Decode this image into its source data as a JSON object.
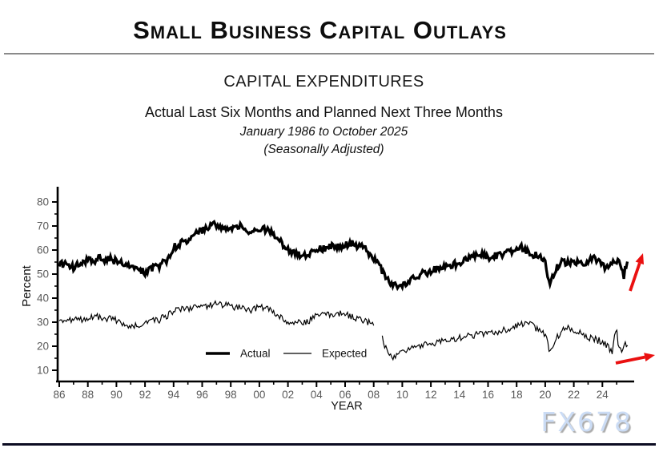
{
  "page": {
    "title": "Small Business Capital Outlays",
    "watermark": "FX678"
  },
  "header": {
    "chart_title": "CAPITAL EXPENDITURES",
    "subtitle": "Actual Last Six Months and Planned Next Three Months",
    "date_range": "January 1986 to October 2025",
    "adjustment_note": "(Seasonally Adjusted)"
  },
  "colors": {
    "line": "#000000",
    "axis": "#000000",
    "tick_label": "#595959",
    "axis_label": "#111111",
    "arrow": "#ea1010",
    "rule": "#8a8a8a",
    "watermark": "#cbdcf5",
    "bottom_bar": "#0c0c22"
  },
  "chart_data": {
    "type": "line",
    "title": "CAPITAL EXPENDITURES",
    "xlabel": "YEAR",
    "ylabel": "Percent",
    "x_range": [
      1986,
      2025.83
    ],
    "ylim": [
      10,
      80
    ],
    "grid": false,
    "legend_position": "inside-bottom-left",
    "y_ticks": [
      10,
      20,
      30,
      40,
      50,
      60,
      70,
      80
    ],
    "y_minor_ticks": [
      15,
      25,
      35,
      45,
      55,
      65,
      75
    ],
    "x_ticks": [
      [
        "86",
        1986
      ],
      [
        "88",
        1988
      ],
      [
        "90",
        1990
      ],
      [
        "92",
        1992
      ],
      [
        "94",
        1994
      ],
      [
        "96",
        1996
      ],
      [
        "98",
        1998
      ],
      [
        "00",
        2000
      ],
      [
        "02",
        2002
      ],
      [
        "04",
        2004
      ],
      [
        "06",
        2006
      ],
      [
        "08",
        2008
      ],
      [
        "10",
        2010
      ],
      [
        "12",
        2012
      ],
      [
        "14",
        2014
      ],
      [
        "16",
        2016
      ],
      [
        "18",
        2018
      ],
      [
        "20",
        2020
      ],
      [
        "22",
        2022
      ],
      [
        "24",
        2024
      ]
    ],
    "x_minor_tick_years": [
      1987,
      1989,
      1991,
      1993,
      1995,
      1997,
      1999,
      2001,
      2003,
      2005,
      2007,
      2009,
      2011,
      2013,
      2015,
      2017,
      2019,
      2021,
      2023,
      2025
    ],
    "legend": [
      {
        "label": "Actual",
        "line": "thick",
        "stroke_width": 3.6
      },
      {
        "label": "Expected",
        "line": "thin",
        "stroke_width": 1.3
      }
    ],
    "series": [
      {
        "name": "Actual",
        "stroke_width": 3.3,
        "noise_amplitude": 1.6,
        "seed": 7,
        "segments": [
          [
            [
              1986,
              54
            ],
            [
              1986.5,
              54.5
            ],
            [
              1987,
              53
            ],
            [
              1988,
              55.5
            ],
            [
              1989,
              56.5
            ],
            [
              1990,
              55.5
            ],
            [
              1991,
              52.5
            ],
            [
              1992,
              50.8
            ],
            [
              1992.6,
              52.5
            ],
            [
              1993,
              53.5
            ],
            [
              1993.5,
              55.5
            ],
            [
              1994,
              61
            ],
            [
              1995,
              64.5
            ],
            [
              1996,
              68
            ],
            [
              1996.8,
              71
            ],
            [
              1997.3,
              69.5
            ],
            [
              1998,
              69.5
            ],
            [
              1998.6,
              70.5
            ],
            [
              1999,
              68.5
            ],
            [
              1999.6,
              68
            ],
            [
              2000,
              69.5
            ],
            [
              2000.6,
              68.5
            ],
            [
              2001,
              66
            ],
            [
              2001.5,
              63
            ],
            [
              2002,
              60.5
            ],
            [
              2002.5,
              59
            ],
            [
              2003,
              57
            ],
            [
              2003.6,
              58.5
            ],
            [
              2004,
              60
            ],
            [
              2005,
              61.5
            ],
            [
              2006,
              62
            ],
            [
              2006.6,
              62.5
            ],
            [
              2007,
              61.5
            ],
            [
              2007.5,
              60
            ],
            [
              2008,
              57
            ],
            [
              2008.5,
              52.5
            ],
            [
              2009,
              47
            ],
            [
              2009.4,
              45.5
            ],
            [
              2010,
              45.5
            ],
            [
              2010.6,
              47
            ],
            [
              2011,
              49
            ],
            [
              2012,
              51.5
            ],
            [
              2013,
              53.5
            ],
            [
              2014,
              54.5
            ],
            [
              2015,
              57.5
            ],
            [
              2015.6,
              58.5
            ],
            [
              2016,
              56.5
            ],
            [
              2017,
              58.5
            ],
            [
              2017.8,
              60
            ],
            [
              2018.4,
              61
            ],
            [
              2019,
              58.5
            ],
            [
              2019.6,
              58
            ],
            [
              2020,
              55
            ],
            [
              2020.3,
              46.5
            ],
            [
              2020.8,
              53
            ],
            [
              2021.2,
              55
            ],
            [
              2022,
              55
            ],
            [
              2022.6,
              54
            ],
            [
              2023,
              56
            ],
            [
              2023.5,
              56.5
            ],
            [
              2024,
              53.5
            ],
            [
              2024.4,
              52.5
            ],
            [
              2024.8,
              55
            ],
            [
              2025.2,
              54.5
            ],
            [
              2025.5,
              49.5
            ],
            [
              2025.83,
              56.5
            ]
          ]
        ]
      },
      {
        "name": "Expected",
        "stroke_width": 1.2,
        "noise_amplitude": 1.5,
        "seed": 31,
        "segments": [
          [
            [
              1986,
              29.5
            ],
            [
              1986.5,
              31
            ],
            [
              1987,
              30.5
            ],
            [
              1988,
              32
            ],
            [
              1988.6,
              32.5
            ],
            [
              1989,
              32
            ],
            [
              1990,
              31
            ],
            [
              1991,
              28.5
            ],
            [
              1991.6,
              28
            ],
            [
              1992,
              29.5
            ],
            [
              1993,
              31
            ],
            [
              1994,
              34.5
            ],
            [
              1995,
              35.5
            ],
            [
              1996,
              36.5
            ],
            [
              1996.8,
              37.5
            ],
            [
              1997.5,
              37
            ],
            [
              1998,
              36.5
            ],
            [
              1999,
              35.5
            ],
            [
              1999.6,
              35
            ],
            [
              2000,
              36.5
            ],
            [
              2000.6,
              35.5
            ],
            [
              2001,
              33.5
            ],
            [
              2001.6,
              31.5
            ],
            [
              2002,
              30.5
            ],
            [
              2003,
              30
            ],
            [
              2003.6,
              31
            ],
            [
              2004,
              32.5
            ],
            [
              2005,
              33.5
            ],
            [
              2005.5,
              34
            ],
            [
              2006,
              33
            ],
            [
              2007,
              31.5
            ],
            [
              2007.5,
              30.5
            ],
            [
              2008.05,
              29
            ]
          ],
          [
            [
              2008.6,
              23.5
            ],
            [
              2009,
              16.5
            ],
            [
              2009.4,
              14.8
            ],
            [
              2010,
              18
            ],
            [
              2010.5,
              19
            ],
            [
              2011,
              19.5
            ],
            [
              2012,
              21
            ],
            [
              2013,
              22
            ],
            [
              2014,
              23.5
            ],
            [
              2015,
              24.5
            ],
            [
              2016,
              25
            ],
            [
              2017,
              26.5
            ],
            [
              2018,
              28.5
            ],
            [
              2018.8,
              29.5
            ],
            [
              2019.4,
              27.5
            ],
            [
              2020,
              25
            ],
            [
              2020.35,
              17
            ],
            [
              2020.8,
              23.5
            ],
            [
              2021.4,
              28
            ],
            [
              2022,
              26.5
            ],
            [
              2022.6,
              25
            ],
            [
              2023,
              23.5
            ],
            [
              2024,
              22
            ],
            [
              2024.4,
              20
            ],
            [
              2024.7,
              17
            ],
            [
              2024.95,
              28
            ],
            [
              2025.2,
              17.5
            ],
            [
              2025.5,
              20.5
            ],
            [
              2025.83,
              21.5
            ]
          ]
        ]
      }
    ],
    "annotations": [
      {
        "type": "arrow",
        "name": "actual-trend-arrow",
        "from": [
          787,
          363
        ],
        "to": [
          803,
          316
        ]
      },
      {
        "type": "arrow",
        "name": "expected-trend-arrow",
        "from": [
          769,
          453
        ],
        "to": [
          818,
          443
        ]
      }
    ]
  }
}
